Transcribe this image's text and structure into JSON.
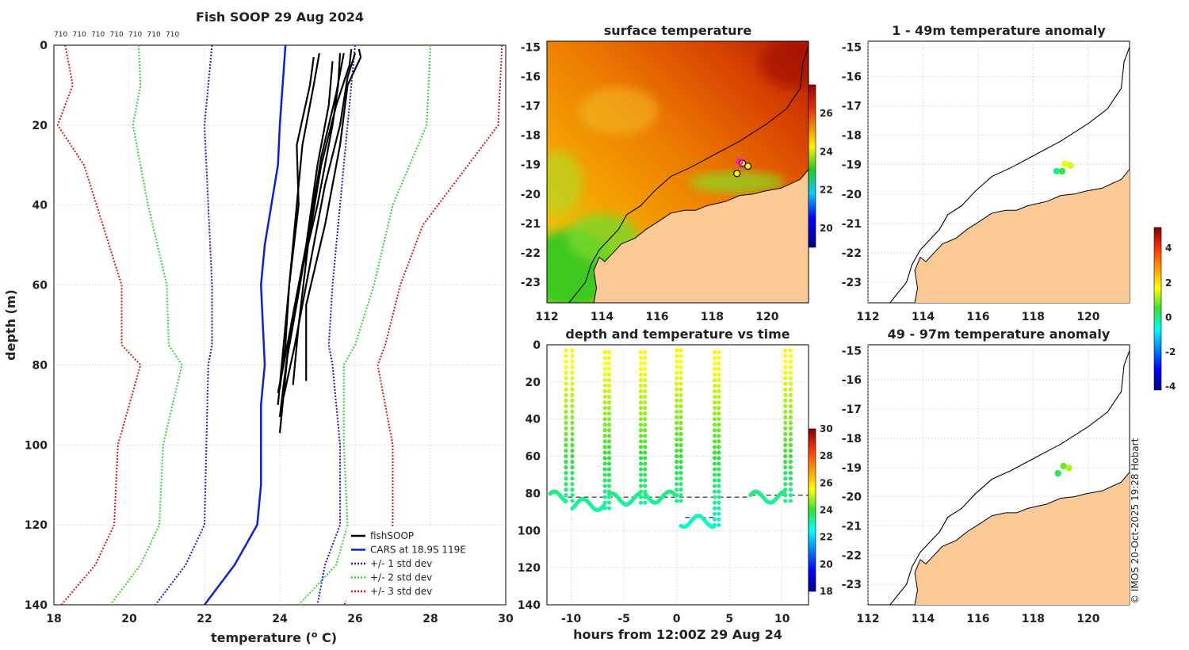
{
  "footer": {
    "watermark": "© IMOS 20-Oct-2025 19:28 Hobart"
  },
  "profile_top_labels": [
    "710",
    "710",
    "710",
    "710",
    "710",
    "710",
    "710"
  ],
  "colors": {
    "land": "#fbc996",
    "cars": "#0a1fe0",
    "std1": "#1515e8",
    "std2": "#2fd62f",
    "std3": "#ee1111",
    "profile": "#000000",
    "marker": "#ff00ff"
  },
  "chart_data": [
    {
      "type": "line",
      "id": "profile",
      "title": "Fish SOOP 29 Aug 2024",
      "xlabel": "temperature (",
      "xlabel_sup": "o",
      "xlabel_tail": " C)",
      "ylabel": "depth (m)",
      "xlim": [
        18,
        30
      ],
      "ylim": [
        140,
        0
      ],
      "xticks": [
        "18",
        "20",
        "22",
        "24",
        "26",
        "28",
        "30"
      ],
      "yticks": [
        "0",
        "20",
        "40",
        "60",
        "80",
        "100",
        "120",
        "140"
      ],
      "legend": {
        "position": "bottom-right",
        "entries": [
          {
            "label": "fishSOOP",
            "style": "solid-black"
          },
          {
            "label": "CARS at 18.9S 119E",
            "style": "solid-blue"
          },
          {
            "label": "+/- 1 std dev",
            "style": "dotted-blue"
          },
          {
            "label": "+/- 2 std dev",
            "style": "dotted-green"
          },
          {
            "label": "+/- 3 std dev",
            "style": "dotted-red"
          }
        ]
      },
      "series": [
        {
          "name": "CARS",
          "depth": [
            0,
            20,
            30,
            50,
            60,
            80,
            90,
            110,
            120,
            130,
            140
          ],
          "temp": [
            24.15,
            24.0,
            23.95,
            23.6,
            23.5,
            23.6,
            23.5,
            23.5,
            23.4,
            22.8,
            22.0
          ]
        },
        {
          "name": "-1 std",
          "depth": [
            0,
            20,
            40,
            60,
            75,
            80,
            100,
            120,
            130,
            140
          ],
          "temp": [
            22.2,
            22.0,
            22.1,
            22.2,
            22.2,
            22.1,
            22.05,
            22.0,
            21.5,
            20.7
          ]
        },
        {
          "name": "+1 std",
          "depth": [
            0,
            20,
            40,
            60,
            75,
            80,
            100,
            120,
            130,
            140
          ],
          "temp": [
            26.0,
            25.8,
            25.6,
            25.4,
            25.3,
            25.4,
            25.6,
            25.6,
            25.2,
            25.0
          ]
        },
        {
          "name": "-2 std",
          "depth": [
            0,
            10,
            20,
            40,
            60,
            75,
            80,
            100,
            120,
            130,
            140
          ],
          "temp": [
            20.25,
            20.3,
            20.1,
            20.5,
            21.0,
            21.05,
            21.4,
            20.9,
            20.8,
            20.3,
            19.5
          ]
        },
        {
          "name": "+2 std",
          "depth": [
            0,
            20,
            40,
            60,
            75,
            80,
            100,
            120,
            130,
            140
          ],
          "temp": [
            28.0,
            27.9,
            27.0,
            26.5,
            26.0,
            25.7,
            25.7,
            25.8,
            25.5,
            24.5
          ]
        },
        {
          "name": "-3 std",
          "depth": [
            0,
            10,
            20,
            30,
            45,
            60,
            75,
            80,
            100,
            120,
            130,
            140
          ],
          "temp": [
            18.3,
            18.5,
            18.1,
            18.8,
            19.3,
            19.8,
            19.8,
            20.3,
            19.7,
            19.6,
            19.1,
            18.2
          ]
        },
        {
          "name": "+3 std",
          "depth": [
            0,
            20,
            30,
            45,
            60,
            75,
            80,
            100,
            120,
            130,
            140
          ],
          "temp": [
            29.9,
            29.8,
            29.0,
            27.8,
            27.2,
            26.8,
            26.6,
            27.0,
            27.0,
            26.5,
            25.7
          ]
        }
      ],
      "profiles": [
        {
          "depth": [
            2,
            10,
            25,
            45,
            65,
            80,
            90
          ],
          "temp": [
            25.05,
            24.9,
            24.6,
            24.4,
            24.2,
            24.05,
            23.95
          ]
        },
        {
          "depth": [
            3,
            10,
            25,
            40,
            60,
            75,
            86
          ],
          "temp": [
            24.9,
            24.8,
            24.45,
            24.5,
            24.25,
            24.15,
            24.0
          ]
        },
        {
          "depth": [
            1,
            5,
            15,
            30,
            50,
            70,
            85
          ],
          "temp": [
            25.9,
            25.85,
            25.5,
            25.1,
            24.75,
            24.5,
            24.35
          ]
        },
        {
          "depth": [
            2,
            8,
            20,
            35,
            55,
            75,
            88
          ],
          "temp": [
            26.0,
            25.8,
            25.6,
            25.2,
            24.8,
            24.4,
            24.1
          ]
        },
        {
          "depth": [
            1,
            3,
            10,
            25,
            45,
            65,
            84
          ],
          "temp": [
            26.1,
            26.15,
            25.8,
            25.6,
            25.2,
            24.7,
            24.7
          ]
        },
        {
          "depth": [
            2,
            10,
            20,
            40,
            60,
            80,
            87
          ],
          "temp": [
            25.6,
            25.55,
            25.4,
            25.0,
            24.5,
            24.1,
            23.95
          ]
        },
        {
          "depth": [
            4,
            15,
            30,
            50,
            70,
            85,
            93
          ],
          "temp": [
            25.4,
            25.3,
            25.0,
            24.7,
            24.3,
            24.1,
            24.0
          ]
        },
        {
          "depth": [
            2,
            12,
            28,
            45,
            62,
            78,
            97
          ],
          "temp": [
            25.7,
            25.5,
            25.1,
            24.8,
            24.5,
            24.2,
            24.0
          ]
        }
      ]
    },
    {
      "type": "heatmap",
      "id": "sst",
      "title": "surface temperature",
      "xticks": [
        "112",
        "114",
        "116",
        "118",
        "120"
      ],
      "yticks": [
        "-15",
        "-16",
        "-17",
        "-18",
        "-19",
        "-20",
        "-21",
        "-22",
        "-23"
      ],
      "xlim": [
        112,
        121.5
      ],
      "ylim": [
        -23.7,
        -14.8
      ],
      "colorbar": {
        "min": 19,
        "max": 27.5,
        "ticks": [
          "20",
          "22",
          "24",
          "26"
        ]
      },
      "stations": [
        {
          "lon": 119.3,
          "lat": -19.05,
          "value": 24.5
        },
        {
          "lon": 118.9,
          "lat": -19.3,
          "value": 24.2
        },
        {
          "lon": 119.1,
          "lat": -18.95,
          "value": 24.3
        }
      ],
      "ship_position": {
        "lon": 119.0,
        "lat": -18.9
      }
    },
    {
      "type": "scatter",
      "id": "timeseries",
      "title": "depth and temperature vs time",
      "xlabel": "hours from 12:00Z 29 Aug 24",
      "xlim": [
        -12.3,
        12.5
      ],
      "ylim": [
        140,
        0
      ],
      "xticks": [
        "-10",
        "-5",
        "0",
        "5",
        "10"
      ],
      "yticks": [
        "0",
        "20",
        "40",
        "60",
        "80",
        "100",
        "120",
        "140"
      ],
      "colorbar": {
        "min": 18,
        "max": 30,
        "ticks": [
          "18",
          "20",
          "22",
          "24",
          "26",
          "28",
          "30"
        ]
      },
      "casts": [
        {
          "t_start": -12.0,
          "t_up": -10.5,
          "t_down": -9.9,
          "bottom": 84
        },
        {
          "t_start": -9.9,
          "t_up": -6.8,
          "t_down": -6.4,
          "bottom": 88
        },
        {
          "t_start": -6.4,
          "t_up": -3.4,
          "t_down": -3.0,
          "bottom": 85
        },
        {
          "t_start": -3.0,
          "t_up": 0.0,
          "t_down": 0.4,
          "bottom": 84
        },
        {
          "t_start": 0.4,
          "t_up": 3.6,
          "t_down": 4.0,
          "bottom": 97
        },
        {
          "t_start": 7.0,
          "t_up": 10.3,
          "t_down": 10.8,
          "bottom": 84
        }
      ],
      "reference_lines": [
        {
          "t0": -10.3,
          "t1": 7.0,
          "depth": 82
        },
        {
          "t0": 0.8,
          "t1": 3.8,
          "depth": 93
        },
        {
          "t0": 7.0,
          "t1": 12.5,
          "depth": 81
        }
      ]
    },
    {
      "type": "scatter",
      "id": "anom_shallow",
      "title": "1 - 49m temperature anomaly",
      "xticks": [
        "112",
        "114",
        "116",
        "118",
        "120"
      ],
      "yticks": [
        "-15",
        "-16",
        "-17",
        "-18",
        "-19",
        "-20",
        "-21",
        "-22",
        "-23"
      ],
      "xlim": [
        112,
        121.5
      ],
      "ylim": [
        -23.7,
        -14.8
      ],
      "points": [
        {
          "lon": 118.85,
          "lat": -19.22,
          "value": 0.0
        },
        {
          "lon": 119.05,
          "lat": -19.22,
          "value": 0.4
        },
        {
          "lon": 119.15,
          "lat": -18.97,
          "value": 1.6
        },
        {
          "lon": 119.35,
          "lat": -19.03,
          "value": 1.4
        }
      ]
    },
    {
      "type": "scatter",
      "id": "anom_deep",
      "title": "49 - 97m temperature anomaly",
      "xticks": [
        "112",
        "114",
        "116",
        "118",
        "120"
      ],
      "yticks": [
        "-15",
        "-16",
        "-17",
        "-18",
        "-19",
        "-20",
        "-21",
        "-22",
        "-23"
      ],
      "xlim": [
        112,
        121.5
      ],
      "ylim": [
        -23.7,
        -14.8
      ],
      "colorbar": {
        "min": -4.2,
        "max": 5.2,
        "ticks": [
          "-4",
          "-2",
          "0",
          "2",
          "4"
        ]
      },
      "points": [
        {
          "lon": 118.9,
          "lat": -19.2,
          "value": 0.3
        },
        {
          "lon": 119.1,
          "lat": -18.95,
          "value": 0.8
        },
        {
          "lon": 119.3,
          "lat": -19.02,
          "value": 1.2
        }
      ]
    }
  ]
}
